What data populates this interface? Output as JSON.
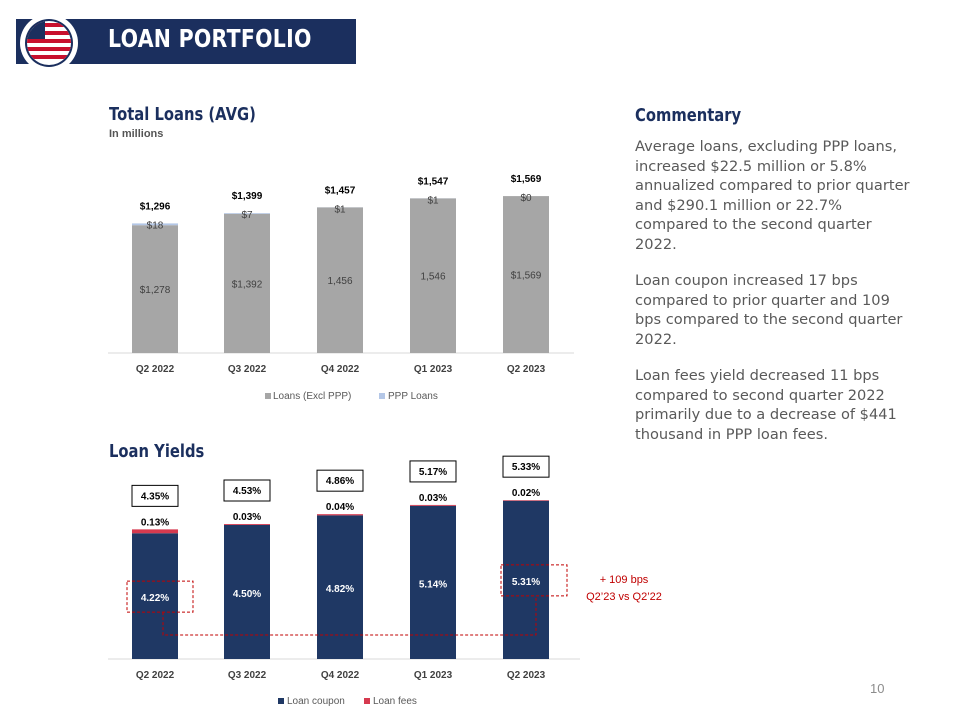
{
  "header": {
    "title": "LOAN PORTFOLIO"
  },
  "page_number": "10",
  "commentary": {
    "title": "Commentary",
    "paragraphs": [
      "Average loans, excluding PPP loans, increased $22.5 million or 5.8% annualized compared to prior quarter and $290.1 million or 22.7% compared to the second quarter 2022.",
      "Loan coupon increased 17 bps compared to prior quarter and 109 bps compared to the second quarter 2022.",
      "Loan fees yield decreased 11 bps compared to second quarter 2022 primarily due to a decrease of $441 thousand in PPP loan fees."
    ]
  },
  "colors": {
    "navy": "#1f3864",
    "gray_bar": "#a6a6a6",
    "ppp": "#b4c7e7",
    "fees": "#d63a4f",
    "red": "#c00000"
  },
  "chart_data": [
    {
      "type": "bar",
      "stacked": true,
      "title": "Total Loans (AVG)",
      "subtitle": "In millions",
      "categories": [
        "Q2 2022",
        "Q3 2022",
        "Q4 2022",
        "Q1 2023",
        "Q2 2023"
      ],
      "series": [
        {
          "name": "Loans (Excl PPP)",
          "values": [
            1278,
            1392,
            1456,
            1546,
            1569
          ],
          "labels": [
            "$1,278",
            "$1,392",
            "1,456",
            "1,546",
            "$1,569"
          ]
        },
        {
          "name": "PPP Loans",
          "values": [
            18,
            7,
            1,
            1,
            0
          ],
          "labels": [
            "$18",
            "$7",
            "$1",
            "$1",
            "$0"
          ]
        }
      ],
      "totals": [
        "$1,296",
        "$1,399",
        "$1,457",
        "$1,547",
        "$1,569"
      ],
      "ylim": [
        0,
        1700
      ],
      "legend": "bottom"
    },
    {
      "type": "bar",
      "stacked": true,
      "title": "Loan Yields",
      "categories": [
        "Q2 2022",
        "Q3 2022",
        "Q4 2022",
        "Q1 2023",
        "Q2 2023"
      ],
      "series": [
        {
          "name": "Loan coupon",
          "values": [
            4.22,
            4.5,
            4.82,
            5.14,
            5.31
          ],
          "labels": [
            "4.22%",
            "4.50%",
            "4.82%",
            "5.14%",
            "5.31%"
          ]
        },
        {
          "name": "Loan fees",
          "values": [
            0.13,
            0.03,
            0.04,
            0.03,
            0.02
          ],
          "labels": [
            "0.13%",
            "0.03%",
            "0.04%",
            "0.03%",
            "0.02%"
          ]
        }
      ],
      "totals": [
        "4.35%",
        "4.53%",
        "4.86%",
        "5.17%",
        "5.33%"
      ],
      "ylim": [
        0,
        6
      ],
      "legend": "bottom",
      "annotation": {
        "line1": "+ 109 bps",
        "line2": "Q2’23 vs Q2’22"
      }
    }
  ]
}
